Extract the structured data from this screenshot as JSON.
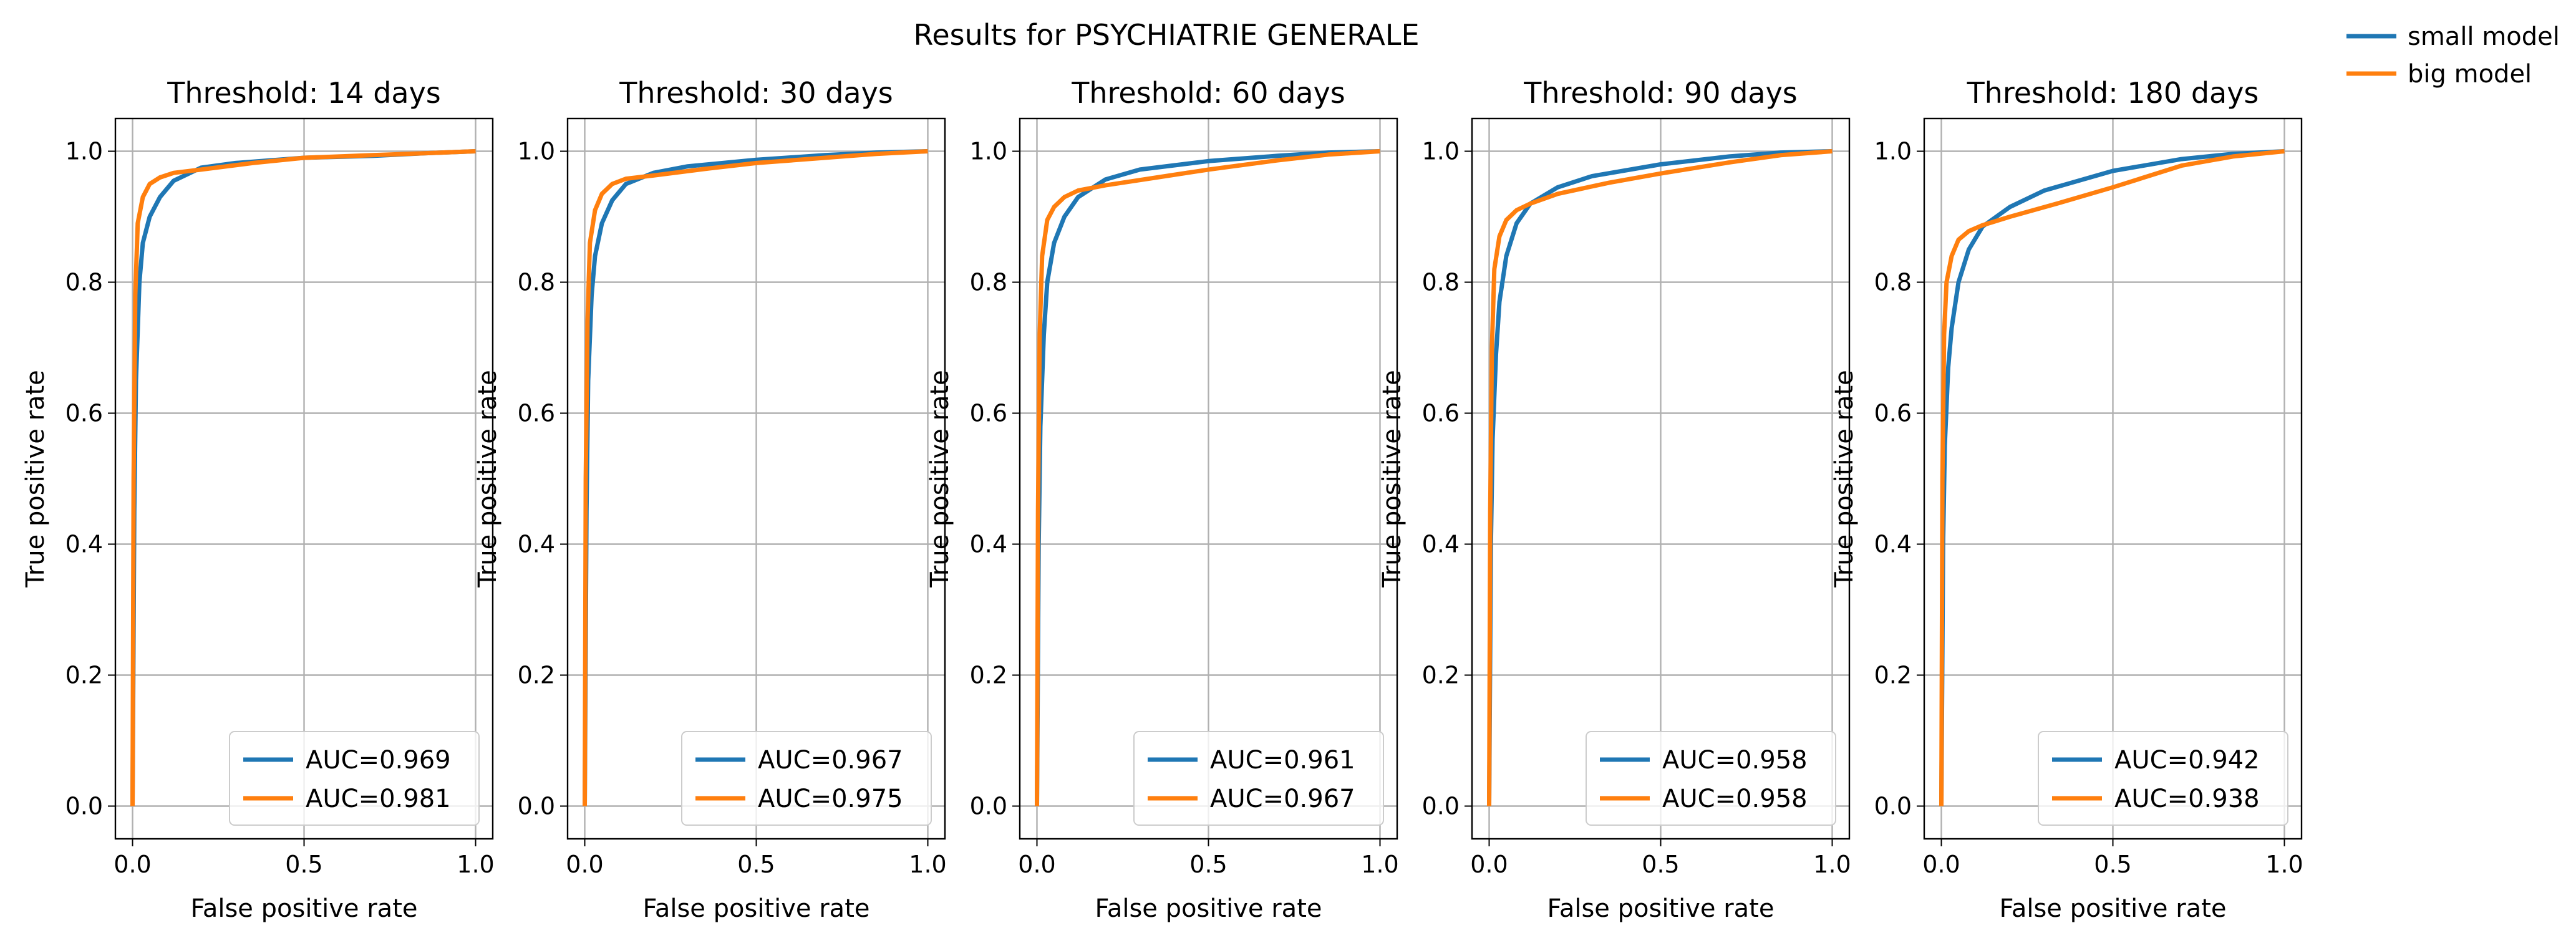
{
  "figure": {
    "suptitle": "Results for PSYCHIATRIE GENERALE",
    "legend": {
      "placement": "top-right",
      "entries": [
        {
          "label": "small model",
          "color": "#1f77b4"
        },
        {
          "label": "big model",
          "color": "#ff7f0e"
        }
      ]
    }
  },
  "chart_data": [
    {
      "type": "line",
      "title": "Threshold: 14 days",
      "xlabel": "False positive rate",
      "ylabel": "True positive rate",
      "xlim": [
        -0.05,
        1.05
      ],
      "ylim": [
        -0.05,
        1.05
      ],
      "xticks": [
        "0.0",
        "0.5",
        "1.0"
      ],
      "yticks": [
        "0.0",
        "0.2",
        "0.4",
        "0.6",
        "0.8",
        "1.0"
      ],
      "grid": true,
      "legend_placement": "lower-right",
      "series": [
        {
          "name": "AUC=0.969",
          "color": "#1f77b4",
          "x": [
            0,
            0.005,
            0.01,
            0.02,
            0.03,
            0.05,
            0.08,
            0.12,
            0.2,
            0.3,
            0.5,
            0.7,
            0.85,
            1.0
          ],
          "y": [
            0,
            0.45,
            0.65,
            0.8,
            0.86,
            0.9,
            0.93,
            0.955,
            0.975,
            0.982,
            0.99,
            0.993,
            0.997,
            1.0
          ]
        },
        {
          "name": "AUC=0.981",
          "color": "#ff7f0e",
          "x": [
            0,
            0.003,
            0.008,
            0.015,
            0.03,
            0.05,
            0.08,
            0.12,
            0.2,
            0.35,
            0.5,
            0.7,
            0.85,
            1.0
          ],
          "y": [
            0,
            0.5,
            0.78,
            0.89,
            0.93,
            0.95,
            0.96,
            0.967,
            0.972,
            0.982,
            0.99,
            0.994,
            0.997,
            1.0
          ]
        }
      ]
    },
    {
      "type": "line",
      "title": "Threshold: 30 days",
      "xlabel": "False positive rate",
      "ylabel": "True positive rate",
      "xlim": [
        -0.05,
        1.05
      ],
      "ylim": [
        -0.05,
        1.05
      ],
      "xticks": [
        "0.0",
        "0.5",
        "1.0"
      ],
      "yticks": [
        "0.0",
        "0.2",
        "0.4",
        "0.6",
        "0.8",
        "1.0"
      ],
      "grid": true,
      "legend_placement": "lower-right",
      "series": [
        {
          "name": "AUC=0.967",
          "color": "#1f77b4",
          "x": [
            0,
            0.005,
            0.01,
            0.02,
            0.03,
            0.05,
            0.08,
            0.12,
            0.2,
            0.3,
            0.5,
            0.7,
            0.85,
            1.0
          ],
          "y": [
            0,
            0.45,
            0.65,
            0.78,
            0.84,
            0.89,
            0.925,
            0.95,
            0.967,
            0.977,
            0.987,
            0.994,
            0.998,
            1.0
          ]
        },
        {
          "name": "AUC=0.975",
          "color": "#ff7f0e",
          "x": [
            0,
            0.003,
            0.008,
            0.015,
            0.03,
            0.05,
            0.08,
            0.12,
            0.2,
            0.35,
            0.5,
            0.7,
            0.85,
            1.0
          ],
          "y": [
            0,
            0.5,
            0.74,
            0.86,
            0.91,
            0.935,
            0.95,
            0.958,
            0.963,
            0.973,
            0.982,
            0.99,
            0.996,
            1.0
          ]
        }
      ]
    },
    {
      "type": "line",
      "title": "Threshold: 60 days",
      "xlabel": "False positive rate",
      "ylabel": "True positive rate",
      "xlim": [
        -0.05,
        1.05
      ],
      "ylim": [
        -0.05,
        1.05
      ],
      "xticks": [
        "0.0",
        "0.5",
        "1.0"
      ],
      "yticks": [
        "0.0",
        "0.2",
        "0.4",
        "0.6",
        "0.8",
        "1.0"
      ],
      "grid": true,
      "legend_placement": "lower-right",
      "series": [
        {
          "name": "AUC=0.961",
          "color": "#1f77b4",
          "x": [
            0,
            0.005,
            0.01,
            0.02,
            0.03,
            0.05,
            0.08,
            0.12,
            0.2,
            0.3,
            0.5,
            0.7,
            0.85,
            1.0
          ],
          "y": [
            0,
            0.4,
            0.58,
            0.72,
            0.8,
            0.86,
            0.9,
            0.93,
            0.957,
            0.972,
            0.985,
            0.993,
            0.998,
            1.0
          ]
        },
        {
          "name": "AUC=0.967",
          "color": "#ff7f0e",
          "x": [
            0,
            0.003,
            0.008,
            0.015,
            0.03,
            0.05,
            0.08,
            0.12,
            0.2,
            0.35,
            0.5,
            0.7,
            0.85,
            1.0
          ],
          "y": [
            0,
            0.45,
            0.72,
            0.84,
            0.895,
            0.915,
            0.93,
            0.94,
            0.948,
            0.96,
            0.972,
            0.986,
            0.995,
            1.0
          ]
        }
      ]
    },
    {
      "type": "line",
      "title": "Threshold: 90 days",
      "xlabel": "False positive rate",
      "ylabel": "True positive rate",
      "xlim": [
        -0.05,
        1.05
      ],
      "ylim": [
        -0.05,
        1.05
      ],
      "xticks": [
        "0.0",
        "0.5",
        "1.0"
      ],
      "yticks": [
        "0.0",
        "0.2",
        "0.4",
        "0.6",
        "0.8",
        "1.0"
      ],
      "grid": true,
      "legend_placement": "lower-right",
      "series": [
        {
          "name": "AUC=0.958",
          "color": "#1f77b4",
          "x": [
            0,
            0.005,
            0.01,
            0.02,
            0.03,
            0.05,
            0.08,
            0.12,
            0.2,
            0.3,
            0.5,
            0.7,
            0.85,
            1.0
          ],
          "y": [
            0,
            0.4,
            0.56,
            0.69,
            0.77,
            0.84,
            0.89,
            0.92,
            0.945,
            0.962,
            0.98,
            0.992,
            0.998,
            1.0
          ]
        },
        {
          "name": "AUC=0.958",
          "color": "#ff7f0e",
          "x": [
            0,
            0.003,
            0.008,
            0.015,
            0.03,
            0.05,
            0.08,
            0.12,
            0.2,
            0.35,
            0.5,
            0.7,
            0.85,
            1.0
          ],
          "y": [
            0,
            0.45,
            0.7,
            0.82,
            0.87,
            0.895,
            0.91,
            0.92,
            0.935,
            0.952,
            0.966,
            0.983,
            0.994,
            1.0
          ]
        }
      ]
    },
    {
      "type": "line",
      "title": "Threshold: 180 days",
      "xlabel": "False positive rate",
      "ylabel": "True positive rate",
      "xlim": [
        -0.05,
        1.05
      ],
      "ylim": [
        -0.05,
        1.05
      ],
      "xticks": [
        "0.0",
        "0.5",
        "1.0"
      ],
      "yticks": [
        "0.0",
        "0.2",
        "0.4",
        "0.6",
        "0.8",
        "1.0"
      ],
      "grid": true,
      "legend_placement": "lower-right",
      "series": [
        {
          "name": "AUC=0.942",
          "color": "#1f77b4",
          "x": [
            0,
            0.005,
            0.01,
            0.02,
            0.03,
            0.05,
            0.08,
            0.12,
            0.2,
            0.3,
            0.5,
            0.7,
            0.85,
            1.0
          ],
          "y": [
            0,
            0.4,
            0.55,
            0.67,
            0.73,
            0.8,
            0.85,
            0.885,
            0.915,
            0.94,
            0.97,
            0.988,
            0.996,
            1.0
          ]
        },
        {
          "name": "AUC=0.938",
          "color": "#ff7f0e",
          "x": [
            0,
            0.003,
            0.008,
            0.015,
            0.03,
            0.05,
            0.08,
            0.12,
            0.2,
            0.35,
            0.5,
            0.7,
            0.85,
            1.0
          ],
          "y": [
            0,
            0.5,
            0.72,
            0.8,
            0.84,
            0.865,
            0.878,
            0.887,
            0.9,
            0.922,
            0.945,
            0.978,
            0.992,
            1.0
          ]
        }
      ]
    }
  ]
}
